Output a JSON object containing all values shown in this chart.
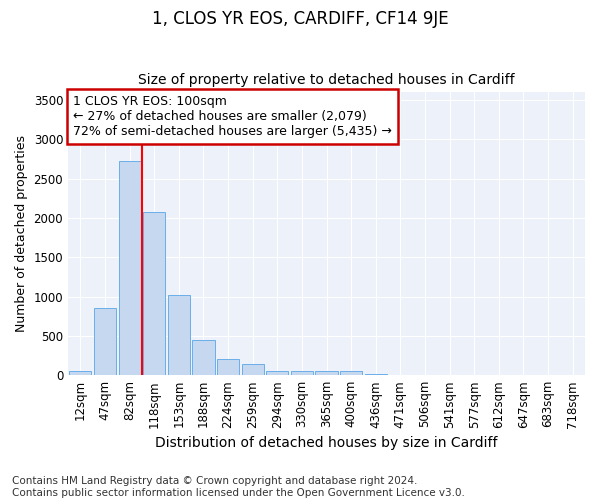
{
  "title1": "1, CLOS YR EOS, CARDIFF, CF14 9JE",
  "title2": "Size of property relative to detached houses in Cardiff",
  "xlabel": "Distribution of detached houses by size in Cardiff",
  "ylabel": "Number of detached properties",
  "categories": [
    "12sqm",
    "47sqm",
    "82sqm",
    "118sqm",
    "153sqm",
    "188sqm",
    "224sqm",
    "259sqm",
    "294sqm",
    "330sqm",
    "365sqm",
    "400sqm",
    "436sqm",
    "471sqm",
    "506sqm",
    "541sqm",
    "577sqm",
    "612sqm",
    "647sqm",
    "683sqm",
    "718sqm"
  ],
  "values": [
    55,
    860,
    2730,
    2080,
    1020,
    450,
    210,
    145,
    50,
    50,
    50,
    50,
    20,
    0,
    0,
    0,
    0,
    0,
    0,
    0,
    0
  ],
  "bar_color": "#c5d8f0",
  "bar_edge_color": "#6aaee8",
  "bg_color": "#edf2fa",
  "grid_color": "#ffffff",
  "fig_bg_color": "#ffffff",
  "red_line_x": 2.5,
  "annotation_text": "1 CLOS YR EOS: 100sqm\n← 27% of detached houses are smaller (2,079)\n72% of semi-detached houses are larger (5,435) →",
  "annotation_box_color": "#ffffff",
  "annotation_box_edge_color": "#cc0000",
  "footnote": "Contains HM Land Registry data © Crown copyright and database right 2024.\nContains public sector information licensed under the Open Government Licence v3.0.",
  "ylim": [
    0,
    3600
  ],
  "yticks": [
    0,
    500,
    1000,
    1500,
    2000,
    2500,
    3000,
    3500
  ],
  "title1_fontsize": 12,
  "title2_fontsize": 10,
  "xlabel_fontsize": 10,
  "ylabel_fontsize": 9,
  "tick_fontsize": 8.5,
  "annot_fontsize": 9,
  "footnote_fontsize": 7.5
}
